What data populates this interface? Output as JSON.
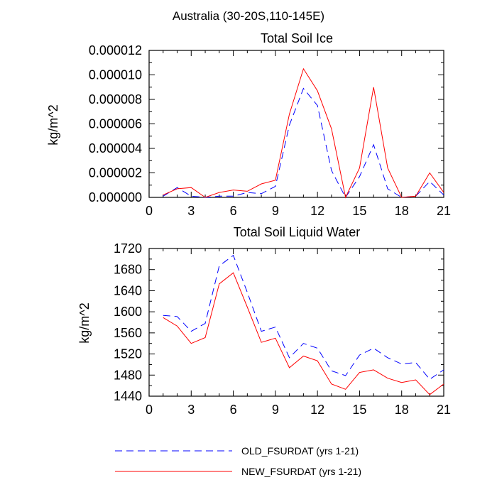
{
  "figure": {
    "title": "Australia (30-20S,110-145E)"
  },
  "legend": [
    {
      "label": "OLD_FSURDAT (yrs 1-21)",
      "color": "#0000ff",
      "dash": "dashed"
    },
    {
      "label": "NEW_FSURDAT (yrs 1-21)",
      "color": "#ff0000",
      "dash": "solid"
    }
  ],
  "chart_data": [
    {
      "type": "line",
      "title": "Total Soil Ice",
      "xlabel": "",
      "ylabel": "kg/m^2",
      "xlim": [
        0,
        21
      ],
      "ylim": [
        0,
        1.2e-05
      ],
      "xticks": [
        0,
        3,
        6,
        9,
        12,
        15,
        18,
        21
      ],
      "xtick_labels": [
        "0",
        "3",
        "6",
        "9",
        "12",
        "15",
        "18",
        "21"
      ],
      "yticks": [
        0,
        2e-06,
        4e-06,
        6e-06,
        8e-06,
        1e-05,
        1.2e-05
      ],
      "ytick_labels": [
        "0.000000",
        "0.000002",
        "0.000004",
        "0.000006",
        "0.000008",
        "0.000010",
        "0.000012"
      ],
      "x": [
        1,
        2,
        3,
        4,
        5,
        6,
        7,
        8,
        9,
        10,
        11,
        12,
        13,
        14,
        15,
        16,
        17,
        18,
        19,
        20,
        21
      ],
      "series": [
        {
          "name": "OLD_FSURDAT (yrs 1-21)",
          "color": "#0000ff",
          "dash": "dashed",
          "values": [
            1e-07,
            8e-07,
            1e-07,
            0.0,
            1e-07,
            1e-07,
            4e-07,
            3e-07,
            9e-07,
            5.9e-06,
            8.9e-06,
            7.5e-06,
            2.2e-06,
            0.0,
            1.7e-06,
            4.3e-06,
            7e-07,
            0.0,
            1e-07,
            1.3e-06,
            2e-07
          ]
        },
        {
          "name": "NEW_FSURDAT (yrs 1-21)",
          "color": "#ff0000",
          "dash": "solid",
          "values": [
            2e-07,
            7e-07,
            8e-07,
            0.0,
            4e-07,
            6e-07,
            5e-07,
            1.1e-06,
            1.4e-06,
            6.8e-06,
            1.05e-05,
            8.7e-06,
            5.6e-06,
            0.0,
            2.4e-06,
            9e-06,
            2.4e-06,
            0.0,
            1e-07,
            2e-06,
            4e-07
          ]
        }
      ]
    },
    {
      "type": "line",
      "title": "Total Soil Liquid Water",
      "xlabel": "",
      "ylabel": "kg/m^2",
      "xlim": [
        0,
        21
      ],
      "ylim": [
        1440,
        1720
      ],
      "xticks": [
        0,
        3,
        6,
        9,
        12,
        15,
        18,
        21
      ],
      "xtick_labels": [
        "0",
        "3",
        "6",
        "9",
        "12",
        "15",
        "18",
        "21"
      ],
      "yticks": [
        1440,
        1480,
        1520,
        1560,
        1600,
        1640,
        1680,
        1720
      ],
      "ytick_labels": [
        "1440",
        "1480",
        "1520",
        "1560",
        "1600",
        "1640",
        "1680",
        "1720"
      ],
      "x": [
        1,
        2,
        3,
        4,
        5,
        6,
        7,
        8,
        9,
        10,
        11,
        12,
        13,
        14,
        15,
        16,
        17,
        18,
        19,
        20,
        21
      ],
      "series": [
        {
          "name": "OLD_FSURDAT (yrs 1-21)",
          "color": "#0000ff",
          "dash": "dashed",
          "values": [
            1593,
            1591,
            1563,
            1578,
            1687,
            1707,
            1637,
            1563,
            1571,
            1513,
            1540,
            1531,
            1488,
            1479,
            1518,
            1531,
            1513,
            1501,
            1504,
            1472,
            1490
          ]
        },
        {
          "name": "NEW_FSURDAT (yrs 1-21)",
          "color": "#ff0000",
          "dash": "solid",
          "values": [
            1589,
            1573,
            1540,
            1551,
            1653,
            1674,
            1609,
            1542,
            1550,
            1494,
            1516,
            1507,
            1463,
            1453,
            1485,
            1490,
            1474,
            1466,
            1471,
            1443,
            1463
          ]
        }
      ]
    }
  ]
}
